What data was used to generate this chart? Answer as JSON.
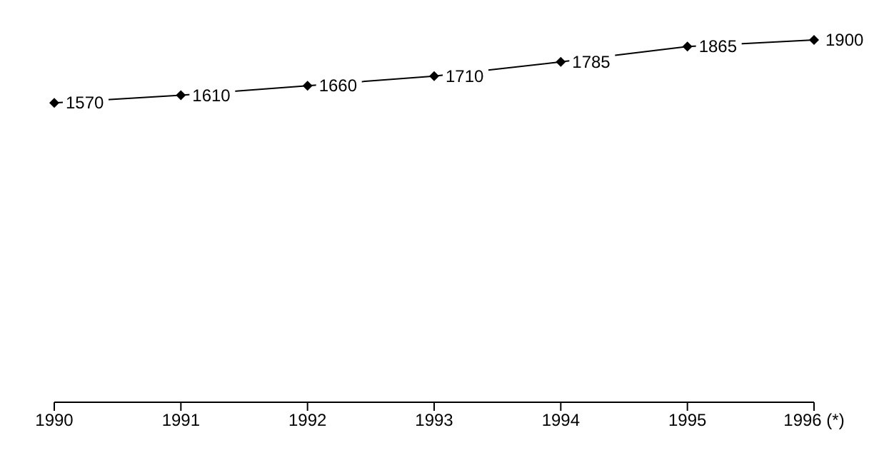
{
  "chart_data": {
    "type": "line",
    "categories": [
      "1990",
      "1991",
      "1992",
      "1993",
      "1994",
      "1995",
      "1996 (*)"
    ],
    "series": [
      {
        "color": "#000000",
        "values": [
          1570,
          1610,
          1660,
          1710,
          1785,
          1865,
          1900
        ]
      }
    ],
    "tick_labels": "x",
    "data_labels": true,
    "marker": "diamond",
    "line_style": "solid"
  }
}
